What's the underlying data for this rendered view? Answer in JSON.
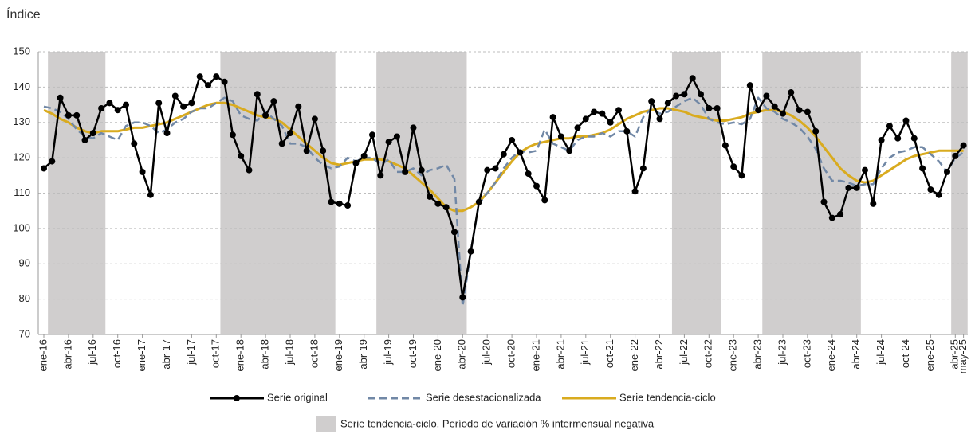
{
  "chart_data": {
    "type": "line",
    "y_label": "Índice",
    "categories": [
      "ene-16",
      null,
      null,
      "abr-16",
      null,
      null,
      "jul-16",
      null,
      null,
      "oct-16",
      null,
      null,
      "ene-17",
      null,
      null,
      "abr-17",
      null,
      null,
      "jul-17",
      null,
      null,
      "oct-17",
      null,
      null,
      "ene-18",
      null,
      null,
      "abr-18",
      null,
      null,
      "jul-18",
      null,
      null,
      "oct-18",
      null,
      null,
      "ene-19",
      null,
      null,
      "abr-19",
      null,
      null,
      "jul-19",
      null,
      null,
      "oct-19",
      null,
      null,
      "ene-20",
      null,
      null,
      "abr-20",
      null,
      null,
      "jul-20",
      null,
      null,
      "oct-20",
      null,
      null,
      "ene-21",
      null,
      null,
      "abr-21",
      null,
      null,
      "jul-21",
      null,
      null,
      "oct-21",
      null,
      null,
      "ene-22",
      null,
      null,
      "abr-22",
      null,
      null,
      "jul-22",
      null,
      null,
      "oct-22",
      null,
      null,
      "ene-23",
      null,
      null,
      "abr-23",
      null,
      null,
      "jul-23",
      null,
      null,
      "oct-23",
      null,
      null,
      "ene-24",
      null,
      null,
      "abr-24",
      null,
      null,
      "jul-24",
      null,
      null,
      "oct-24",
      null,
      null,
      "ene-25",
      null,
      null,
      "abr-25",
      "may-25"
    ],
    "series": [
      {
        "name": "Serie original",
        "color": "#000000",
        "style": "solid-markers",
        "values": [
          117,
          119,
          137,
          132,
          132,
          125,
          127,
          134,
          135.5,
          133.5,
          135,
          124,
          116,
          109.5,
          135.5,
          127,
          137.5,
          134.5,
          135.5,
          143,
          140.5,
          143,
          141.5,
          126.5,
          120.5,
          116.5,
          138,
          132,
          136,
          124,
          127,
          134.5,
          122,
          131,
          122,
          107.5,
          107,
          106.5,
          118.5,
          120.5,
          126.5,
          115,
          124.5,
          126,
          116,
          128.5,
          116.5,
          109,
          107,
          106,
          99,
          80.5,
          93.5,
          107.5,
          116.5,
          117,
          121,
          125,
          121.5,
          115.5,
          112,
          108,
          131.5,
          126,
          122,
          128.5,
          131,
          133,
          132.5,
          130,
          133.5,
          127.5,
          110.5,
          117,
          136,
          131,
          135.5,
          137.5,
          138,
          142.5,
          138,
          134,
          134,
          123.5,
          117.5,
          115,
          140.5,
          133.5,
          137.5,
          134.5,
          132.5,
          138.5,
          133.5,
          133,
          127.5,
          107.5,
          103,
          104,
          111.5,
          111.5,
          116.5,
          107,
          125,
          129,
          125.5,
          130.5,
          125.5,
          117,
          111,
          109.5,
          116,
          120.5,
          123.5
        ]
      },
      {
        "name": "Serie desestacionalizada",
        "color": "#7188a6",
        "style": "dashed",
        "values": [
          134.5,
          134,
          133,
          131,
          128,
          126,
          125.5,
          127,
          126,
          125,
          129,
          130,
          130,
          129,
          127,
          128,
          130,
          131,
          133,
          134,
          134,
          135.5,
          137,
          136,
          132,
          131,
          130.5,
          133,
          131,
          129,
          124,
          124,
          123,
          120,
          118,
          117,
          117.5,
          120,
          119,
          120,
          120,
          118,
          119.5,
          116,
          116,
          117,
          115,
          116.5,
          117,
          118,
          114,
          78,
          93.5,
          107,
          110,
          113,
          117,
          120,
          122,
          121.5,
          122,
          128,
          124,
          123,
          122,
          125,
          126,
          126,
          127,
          126,
          127.5,
          127.5,
          126,
          131.5,
          134,
          132.5,
          133,
          134.5,
          136,
          137,
          135,
          131,
          130,
          129.5,
          130,
          129.5,
          131,
          137,
          134,
          133,
          131,
          130,
          128.5,
          126,
          122.5,
          117,
          113.5,
          113.5,
          113,
          112,
          112.5,
          112.5,
          117,
          120,
          121.5,
          122,
          123,
          123,
          121,
          119,
          116,
          120,
          121.5
        ]
      },
      {
        "name": "Serie tendencia-ciclo",
        "color": "#d9ab1f",
        "style": "solid",
        "values": [
          133.5,
          132.5,
          131,
          130,
          128.5,
          127.5,
          127,
          127.5,
          127.5,
          127.5,
          128,
          128.5,
          128.5,
          129,
          129.5,
          130,
          131,
          132,
          133,
          134,
          135,
          135.5,
          135.5,
          135,
          134,
          133,
          132,
          131.5,
          131,
          130,
          128,
          126,
          124,
          122,
          120,
          118.5,
          118,
          118.5,
          119,
          119.5,
          119.5,
          119.5,
          119,
          118,
          117,
          115,
          113,
          111,
          108.5,
          106,
          105,
          105,
          106,
          107.5,
          110,
          113,
          116,
          119,
          121.5,
          123,
          124,
          124.5,
          125,
          125.5,
          125.5,
          126,
          126,
          126.5,
          127,
          128,
          129.5,
          131,
          132,
          133,
          133.5,
          134,
          134,
          133.5,
          133,
          132,
          131.5,
          131,
          130.5,
          130.5,
          131,
          131.5,
          132.5,
          133,
          133.5,
          133.5,
          133,
          132,
          130.5,
          128.5,
          126,
          123,
          120,
          117,
          115,
          113.5,
          113,
          113.5,
          115,
          116.5,
          118,
          119.5,
          120.5,
          121,
          121.5,
          122,
          122,
          122,
          122
        ]
      }
    ],
    "shading": {
      "name": "Serie tendencia-ciclo. Período de variación % intermensual negativa",
      "color": "#d0cece",
      "periods": [
        [
          1,
          7
        ],
        [
          22,
          35
        ],
        [
          41,
          51
        ],
        [
          77,
          82
        ],
        [
          88,
          99
        ],
        [
          111,
          112
        ]
      ]
    },
    "ylim": [
      70,
      150
    ],
    "yticks": [
      70,
      80,
      90,
      100,
      110,
      120,
      130,
      140,
      150
    ],
    "grid": true
  }
}
